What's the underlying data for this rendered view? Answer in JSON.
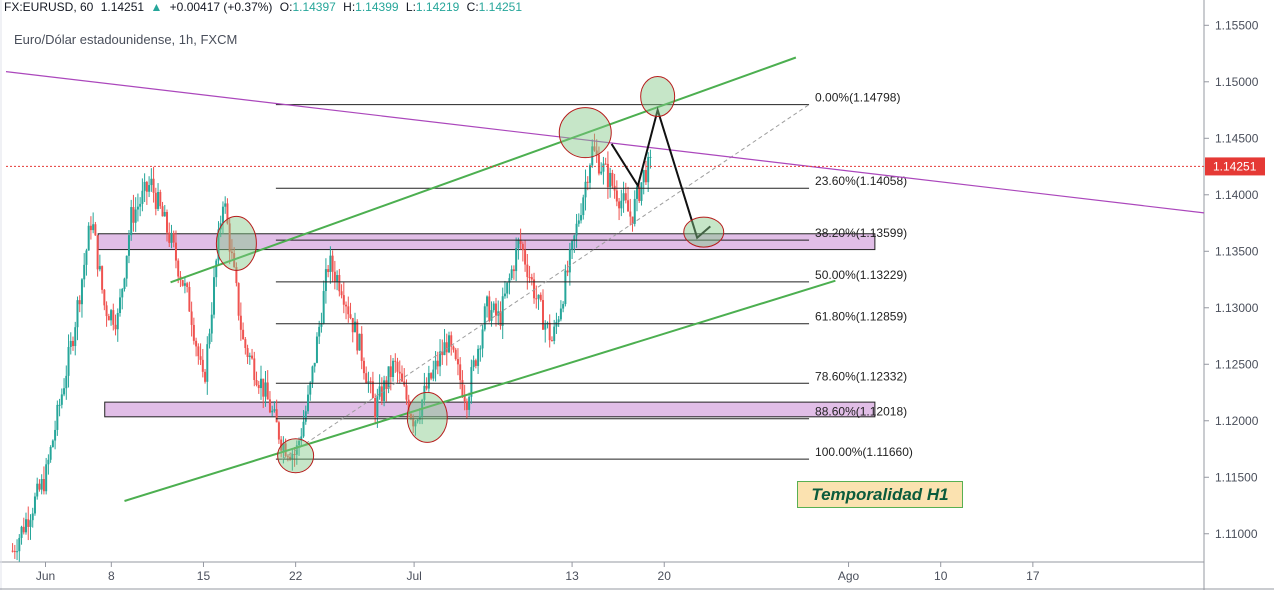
{
  "header": {
    "symbol": "FX:EURUSD, 60",
    "last": "1.14251",
    "arrow": "▲",
    "change": "+0.00417 (+0.37%)",
    "o_label": "O:",
    "o": "1.14397",
    "h_label": "H:",
    "h": "1.14399",
    "l_label": "L:",
    "l": "1.14219",
    "c_label": "C:",
    "c": "1.14251",
    "subtitle": "Euro/Dólar estadounidense, 1h, FXCM"
  },
  "annotation": {
    "text": "Temporalidad H1"
  },
  "colors": {
    "up": "#26a69a",
    "down": "#ef5350",
    "channel": "#4caf50",
    "trendline": "#ab47bc",
    "zone_fill": "#e1bee7",
    "price_line": "#e53935"
  },
  "chart_data": {
    "type": "candlestick",
    "instrument": "EURUSD",
    "timeframe": "1h",
    "y_range": [
      1.1075,
      1.156
    ],
    "y_ticks": [
      "1.15500",
      "1.15000",
      "1.14500",
      "1.14000",
      "1.13500",
      "1.13000",
      "1.12500",
      "1.12000",
      "1.11500",
      "1.11000"
    ],
    "x_range_days": [
      0,
      91
    ],
    "x_ticks": [
      {
        "label": "Jun",
        "day": 3
      },
      {
        "label": "8",
        "day": 8
      },
      {
        "label": "15",
        "day": 15
      },
      {
        "label": "22",
        "day": 22
      },
      {
        "label": "Jul",
        "day": 31
      },
      {
        "label": "13",
        "day": 43
      },
      {
        "label": "20",
        "day": 50
      },
      {
        "label": "Ago",
        "day": 64
      },
      {
        "label": "10",
        "day": 71
      },
      {
        "label": "17",
        "day": 78
      }
    ],
    "last_price": 1.14251,
    "last_price_label": "1.14251",
    "price_path": [
      {
        "day": 0.5,
        "price": 1.1085
      },
      {
        "day": 3,
        "price": 1.115
      },
      {
        "day": 5,
        "price": 1.127
      },
      {
        "day": 6.5,
        "price": 1.138
      },
      {
        "day": 7.5,
        "price": 1.13
      },
      {
        "day": 8.5,
        "price": 1.129
      },
      {
        "day": 9.5,
        "price": 1.138
      },
      {
        "day": 11,
        "price": 1.141
      },
      {
        "day": 12.5,
        "price": 1.136
      },
      {
        "day": 14,
        "price": 1.13
      },
      {
        "day": 15,
        "price": 1.123
      },
      {
        "day": 16.5,
        "price": 1.14
      },
      {
        "day": 18,
        "price": 1.127
      },
      {
        "day": 19.5,
        "price": 1.123
      },
      {
        "day": 21,
        "price": 1.118
      },
      {
        "day": 22,
        "price": 1.117
      },
      {
        "day": 23,
        "price": 1.122
      },
      {
        "day": 24.5,
        "price": 1.134
      },
      {
        "day": 25.5,
        "price": 1.132
      },
      {
        "day": 27,
        "price": 1.126
      },
      {
        "day": 28,
        "price": 1.121
      },
      {
        "day": 29.5,
        "price": 1.125
      },
      {
        "day": 31,
        "price": 1.12
      },
      {
        "day": 32,
        "price": 1.123
      },
      {
        "day": 33.5,
        "price": 1.127
      },
      {
        "day": 35,
        "price": 1.122
      },
      {
        "day": 36.5,
        "price": 1.13
      },
      {
        "day": 37.5,
        "price": 1.129
      },
      {
        "day": 39,
        "price": 1.136
      },
      {
        "day": 40.5,
        "price": 1.13
      },
      {
        "day": 41.5,
        "price": 1.127
      },
      {
        "day": 43,
        "price": 1.135
      },
      {
        "day": 44.5,
        "price": 1.144
      },
      {
        "day": 45.5,
        "price": 1.142
      },
      {
        "day": 46.5,
        "price": 1.14
      },
      {
        "day": 47.5,
        "price": 1.138
      },
      {
        "day": 48.5,
        "price": 1.142
      },
      {
        "day": 49,
        "price": 1.1425
      }
    ],
    "fibonacci": {
      "levels": [
        {
          "label": "0.00%(1.14798)",
          "price": 1.14798
        },
        {
          "label": "23.60%(1.14058)",
          "price": 1.14058
        },
        {
          "label": "38.20%(1.13599)",
          "price": 1.13599
        },
        {
          "label": "50.00%(1.13229)",
          "price": 1.13229
        },
        {
          "label": "61.80%(1.12859)",
          "price": 1.12859
        },
        {
          "label": "78.60%(1.12332)",
          "price": 1.12332
        },
        {
          "label": "88.60%(1.12018)",
          "price": 1.12018
        },
        {
          "label": "100.00%(1.11660)",
          "price": 1.1166
        }
      ],
      "day_start": 20.5,
      "day_end": 61
    },
    "zones": [
      {
        "day_start": 7,
        "day_end": 66,
        "price_top": 1.13655,
        "price_bottom": 1.13515
      },
      {
        "day_start": 7.5,
        "day_end": 66,
        "price_top": 1.12165,
        "price_bottom": 1.12035
      }
    ],
    "channel": {
      "upper": [
        {
          "day": 12.5,
          "price": 1.13225
        },
        {
          "day": 60,
          "price": 1.15215
        }
      ],
      "lower": [
        {
          "day": 9,
          "price": 1.1129
        },
        {
          "day": 63,
          "price": 1.1324
        }
      ]
    },
    "descending_trendline": [
      {
        "day": 0,
        "price": 1.1509
      },
      {
        "day": 91,
        "price": 1.1384
      }
    ],
    "dashed_trend": [
      {
        "day": 21,
        "price": 1.1166
      },
      {
        "day": 61,
        "price": 1.14798
      }
    ],
    "projection_path": [
      {
        "day": 46,
        "price": 1.1445
      },
      {
        "day": 48,
        "price": 1.1408
      },
      {
        "day": 49.5,
        "price": 1.1475
      },
      {
        "day": 52.5,
        "price": 1.1362
      },
      {
        "day": 53.5,
        "price": 1.1372
      }
    ],
    "highlight_ellipses": [
      {
        "day": 17.5,
        "price": 1.1357
      },
      {
        "day": 22,
        "price": 1.1169
      },
      {
        "day": 32,
        "price": 1.1203
      },
      {
        "day": 44,
        "price": 1.1455
      },
      {
        "day": 49.5,
        "price": 1.1487
      },
      {
        "day": 53,
        "price": 1.1367
      }
    ]
  }
}
